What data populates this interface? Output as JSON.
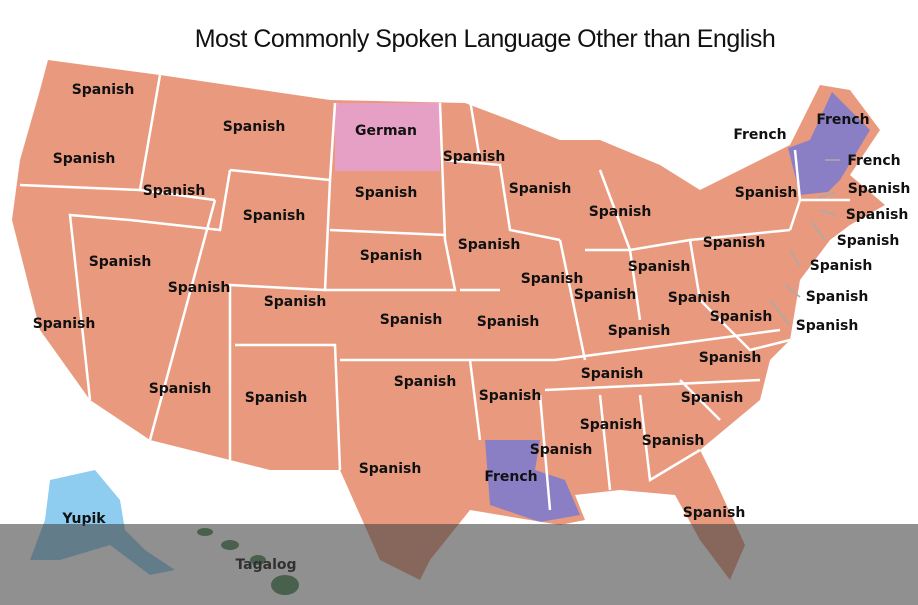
{
  "title": "Most Commonly Spoken Language Other than English",
  "labels": [
    "Spanish",
    "Spanish",
    "Spanish",
    "Spanish",
    "German",
    "Spanish",
    "Spanish",
    "Spanish",
    "Spanish",
    "Spanish",
    "Spanish",
    "Spanish",
    "Spanish",
    "Spanish",
    "Spanish",
    "Spanish",
    "Spanish",
    "Spanish",
    "Spanish",
    "Spanish",
    "Spanish",
    "Spanish",
    "Spanish",
    "Spanish",
    "Spanish",
    "Spanish",
    "French",
    "Spanish",
    "Spanish",
    "Spanish",
    "Spanish",
    "Spanish",
    "Spanish",
    "Spanish",
    "Spanish",
    "Spanish",
    "Spanish",
    "Spanish",
    "French",
    "French",
    "French",
    "Spanish",
    "Spanish",
    "Spanish",
    "Spanish",
    "Spanish",
    "Spanish",
    "Spanish",
    "Yupik",
    "Tagalog"
  ]
}
